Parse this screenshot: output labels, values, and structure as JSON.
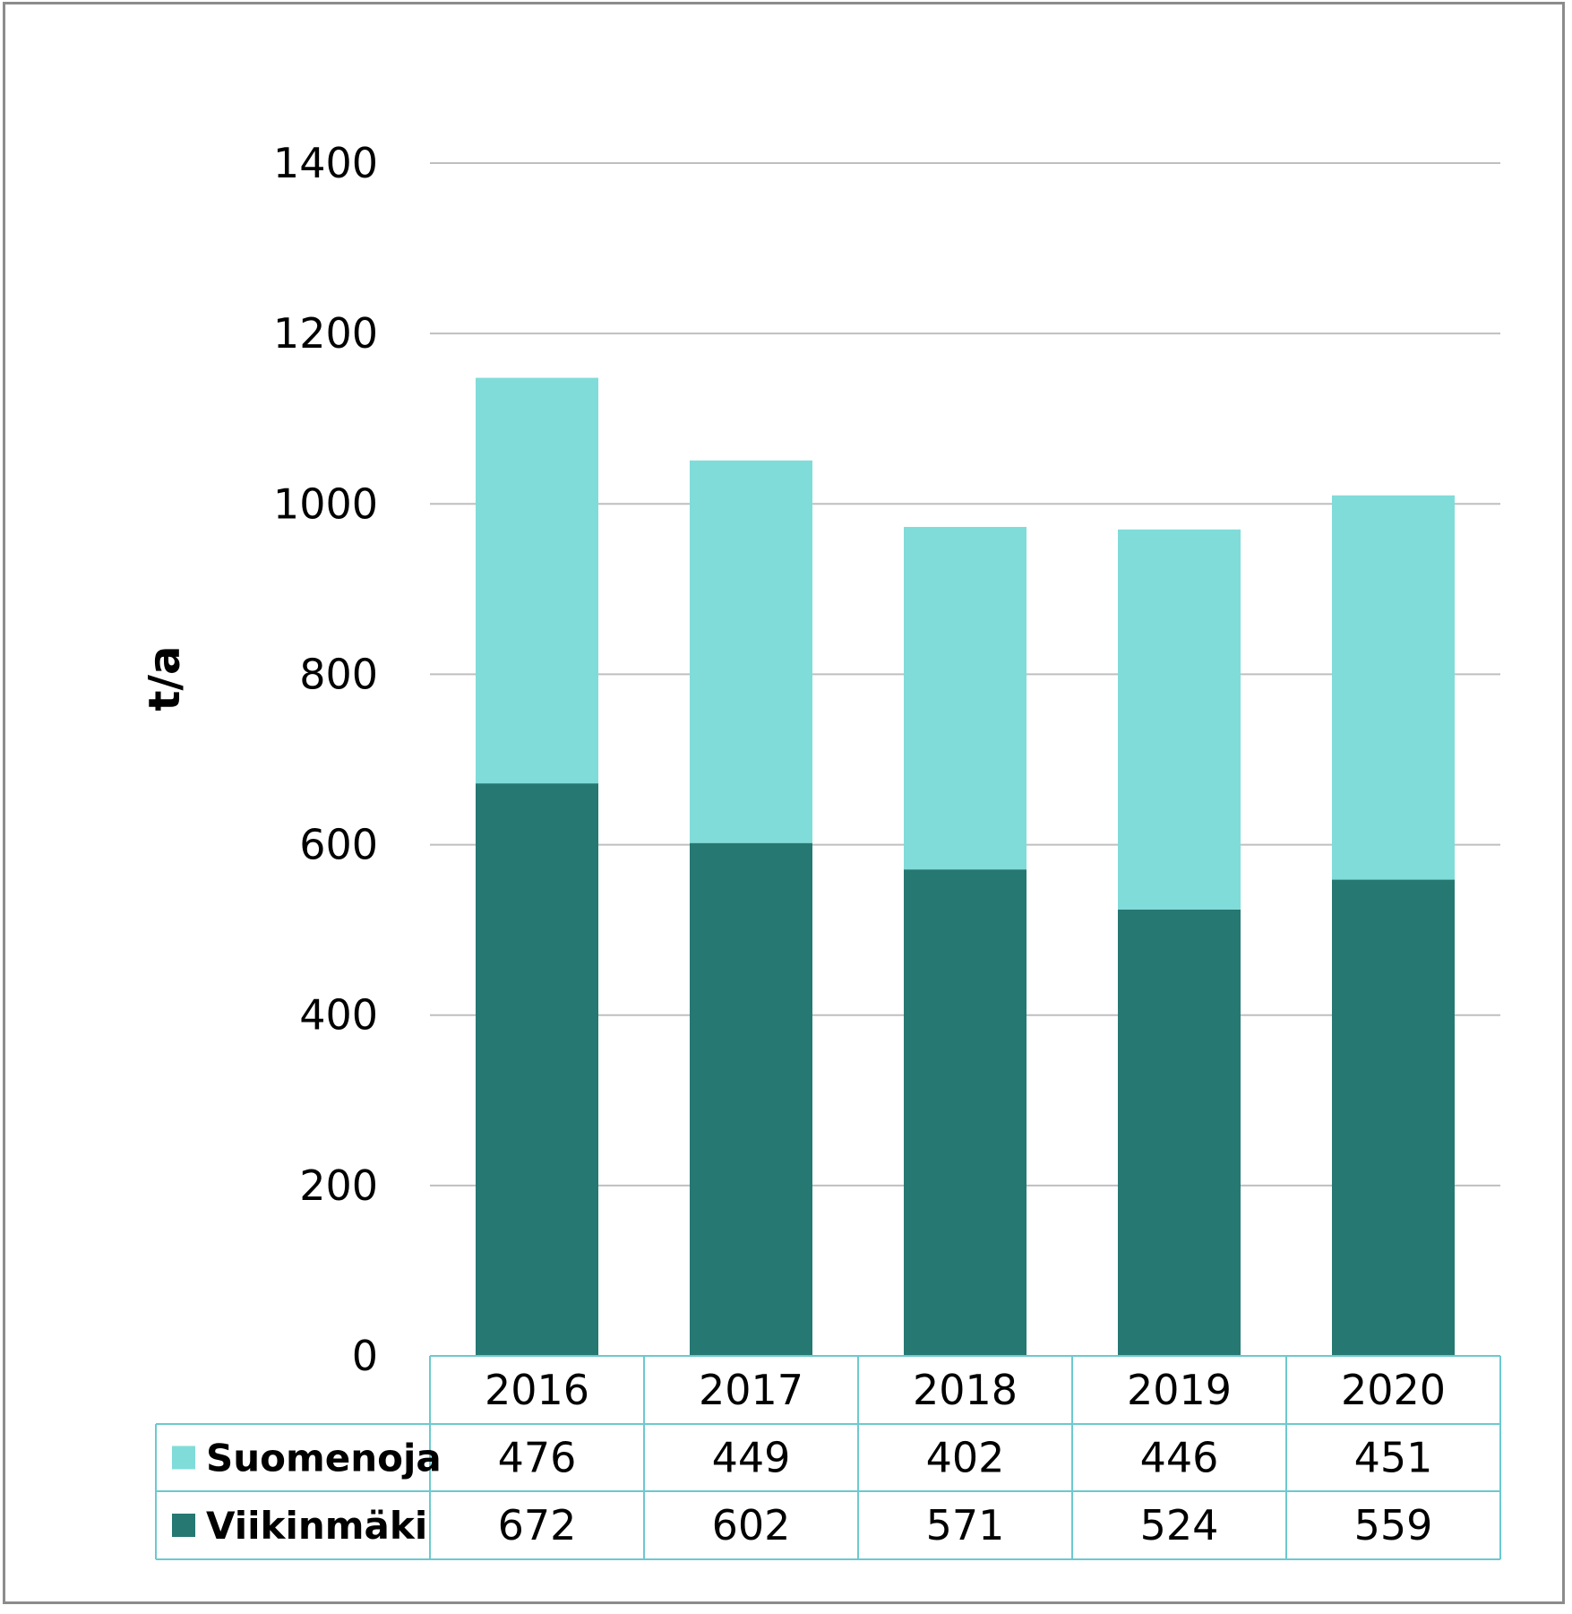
{
  "chart_data": {
    "type": "bar",
    "stacked": true,
    "categories": [
      "2016",
      "2017",
      "2018",
      "2019",
      "2020"
    ],
    "series": [
      {
        "name": "Viikinmäki",
        "values": [
          672,
          602,
          571,
          524,
          559
        ],
        "color": "#267873"
      },
      {
        "name": "Suomenoja",
        "values": [
          476,
          449,
          402,
          446,
          451
        ],
        "color": "#80dcd9"
      }
    ],
    "table_order": [
      "Suomenoja",
      "Viikinmäki"
    ],
    "ylabel": "t/a",
    "xlabel": "",
    "ylim": [
      0,
      1400
    ],
    "yticks": [
      0,
      200,
      400,
      600,
      800,
      1000,
      1200,
      1400
    ],
    "grid": true,
    "legend": "data-table",
    "table_border_color": "#6cc9cf"
  }
}
